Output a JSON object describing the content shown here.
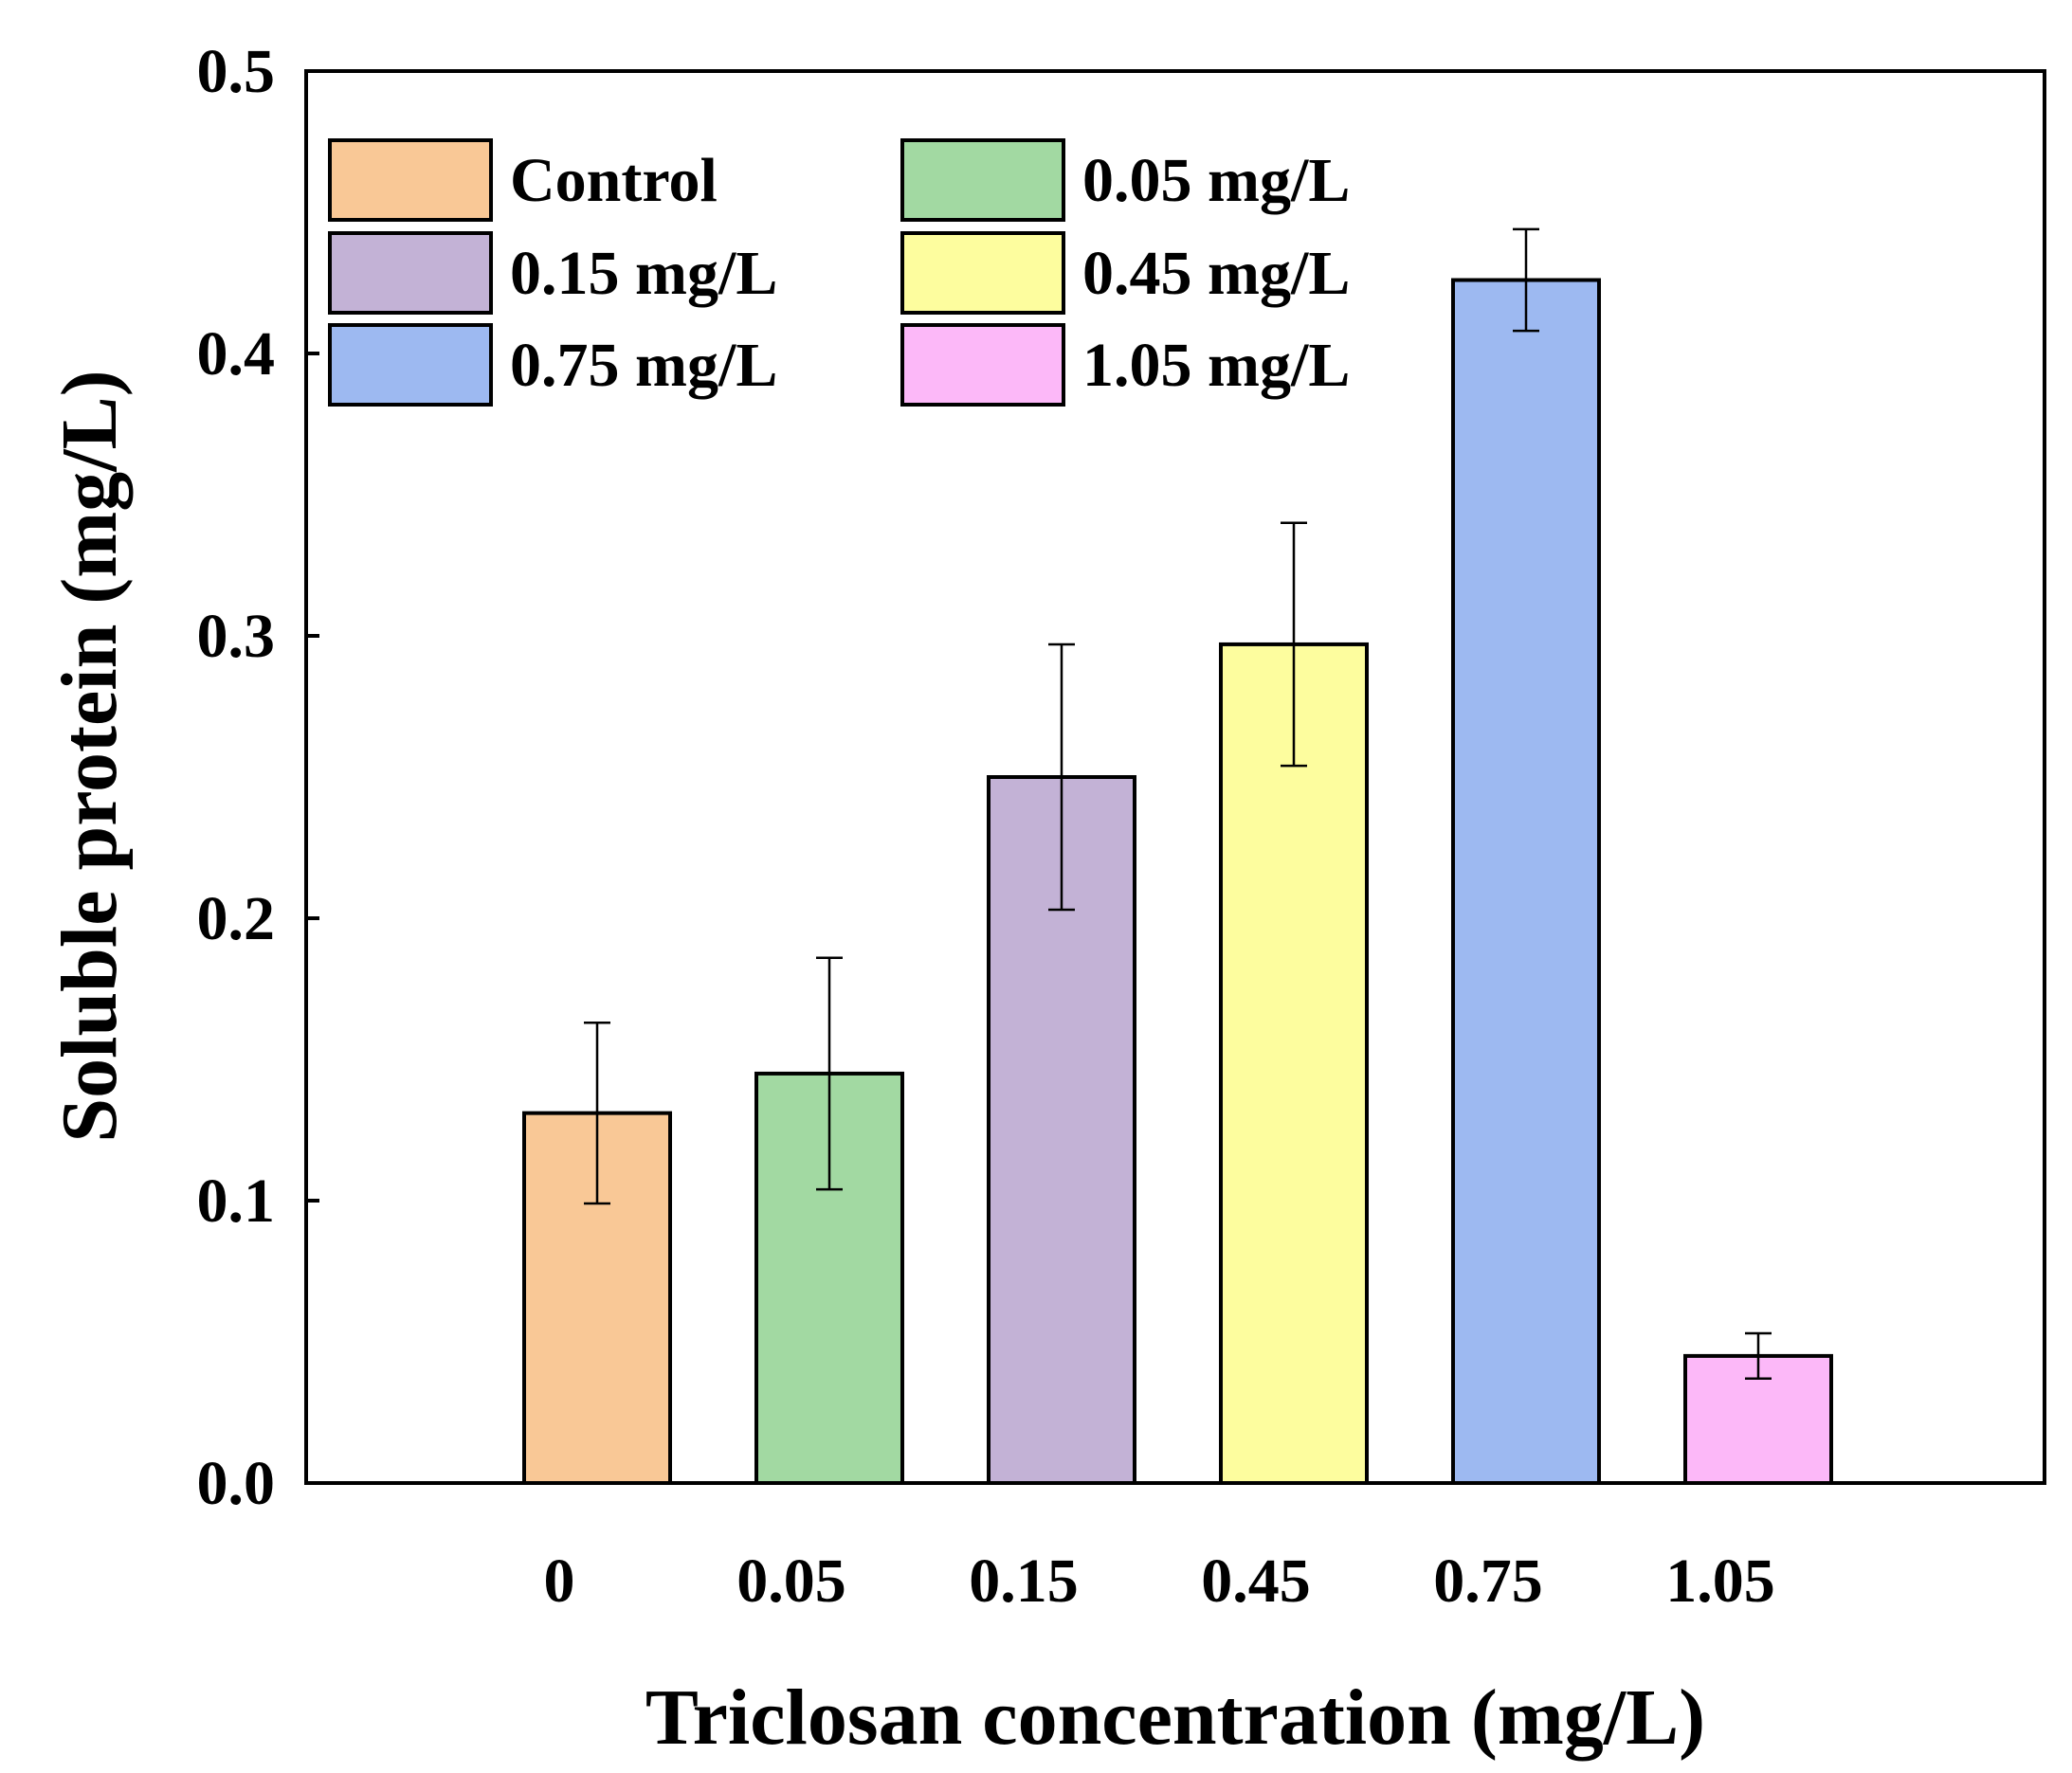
{
  "chart_data": {
    "type": "bar",
    "categories": [
      "0",
      "0.05",
      "0.15",
      "0.45",
      "0.75",
      "1.05"
    ],
    "values": [
      0.131,
      0.145,
      0.25,
      0.297,
      0.426,
      0.045
    ],
    "errors": [
      0.032,
      0.041,
      0.047,
      0.043,
      0.018,
      0.008
    ],
    "bar_colors": [
      "#F9C896",
      "#A2D9A2",
      "#C3B2D6",
      "#FDFD9E",
      "#9DB9F1",
      "#FCB8F8"
    ],
    "legend": {
      "placement": "top-left",
      "entries": [
        "Control",
        "0.05 mg/L",
        "0.15 mg/L",
        "0.45 mg/L",
        "0.75 mg/L",
        "1.05 mg/L"
      ]
    },
    "xlabel": "Triclosan concentration (mg/L)",
    "ylabel": "Soluble protein (mg/L)",
    "ylim": [
      0.0,
      0.5
    ],
    "yticks": [
      "0.0",
      "0.1",
      "0.2",
      "0.3",
      "0.4",
      "0.5"
    ],
    "grid": false
  }
}
